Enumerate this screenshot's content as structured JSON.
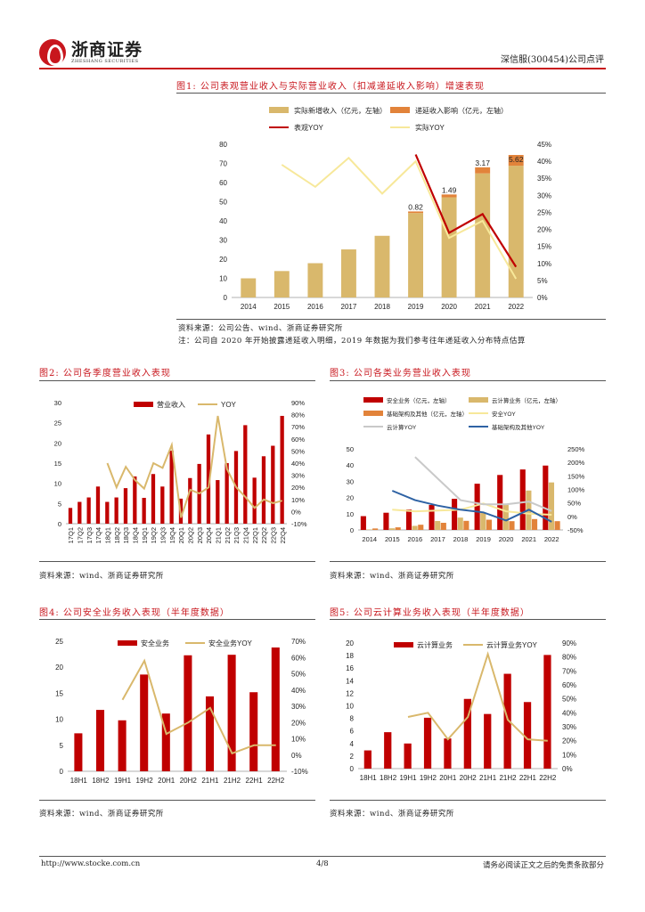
{
  "header": {
    "logo_cn": "浙商证券",
    "logo_en": "ZHESHANG SECURITIES",
    "right": "深信服(300454)公司点评"
  },
  "fig1": {
    "title": "图1:  公司表观营业收入与实际营业收入（扣减递延收入影响）增速表现",
    "source": "资料来源：公司公告、wind、浙商证券研究所",
    "note": "注：公司自 2020 年开始披露递延收入明细，2019 年数据为我们参考往年递延收入分布特点估算"
  },
  "fig2": {
    "title": "图2:  公司各季度营业收入表现",
    "source": "资料来源：wind、浙商证券研究所"
  },
  "fig3": {
    "title": "图3:  公司各类业务营业收入表现",
    "source": "资料来源：wind、浙商证券研究所"
  },
  "fig4": {
    "title": "图4:  公司安全业务收入表现（半年度数据）",
    "source": "资料来源：wind、浙商证券研究所"
  },
  "fig5": {
    "title": "图5:  公司云计算业务收入表现（半年度数据）",
    "source": "资料来源：wind、浙商证券研究所"
  },
  "footer": {
    "url": "http://www.stocke.com.cn",
    "page": "4/8",
    "disclaimer": "请务必阅读正文之后的免责条款部分"
  },
  "colors": {
    "red": "#c00000",
    "tan": "#d9b86c",
    "orange": "#e2833a",
    "yellow": "#f7e89a",
    "gray": "#c9c9c9",
    "blue": "#2e62a4",
    "brand": "#c8161d"
  },
  "chart_data": [
    {
      "id": "c1",
      "type": "bar",
      "categories": [
        "2014",
        "2015",
        "2016",
        "2017",
        "2018",
        "2019",
        "2020",
        "2021",
        "2022"
      ],
      "series": [
        {
          "name": "实际新增收入（亿元，左轴）",
          "values": [
            10,
            13.8,
            17.9,
            25.1,
            32.2,
            44.1,
            52.3,
            64.8,
            68.8
          ]
        },
        {
          "name": "递延收入影响（亿元，左轴）",
          "values": [
            0,
            0,
            0,
            0,
            0,
            0.82,
            1.49,
            3.17,
            5.62
          ]
        }
      ],
      "lines": [
        {
          "name": "表观YOY",
          "axis": "right",
          "values": [
            null,
            null,
            null,
            null,
            null,
            0.42,
            0.19,
            0.245,
            0.09
          ]
        },
        {
          "name": "实际YOY",
          "axis": "right",
          "values": [
            null,
            0.39,
            0.325,
            0.41,
            0.305,
            0.4,
            0.175,
            0.225,
            0.055
          ]
        }
      ],
      "labels": [
        "0.82",
        "1.49",
        "3.17",
        "5.62"
      ],
      "ylim": [
        0,
        80
      ],
      "yticks": [
        "0",
        "10",
        "20",
        "30",
        "40",
        "50",
        "60",
        "70",
        "80"
      ],
      "y2ticks": [
        "0%",
        "5%",
        "10%",
        "15%",
        "20%",
        "25%",
        "30%",
        "35%",
        "40%",
        "45%"
      ]
    },
    {
      "id": "c2",
      "type": "bar",
      "categories": [
        "17Q1",
        "17Q2",
        "17Q3",
        "17Q4",
        "18Q1",
        "18Q2",
        "18Q3",
        "18Q4",
        "19Q1",
        "19Q2",
        "19Q3",
        "19Q4",
        "20Q1",
        "20Q2",
        "20Q3",
        "20Q4",
        "21Q1",
        "21Q2",
        "21Q3",
        "21Q4",
        "22Q1",
        "22Q2",
        "22Q3",
        "22Q4"
      ],
      "series": [
        {
          "name": "营业收入",
          "values": [
            3.9,
            5.4,
            6.5,
            9.2,
            5.4,
            6.5,
            8.8,
            11.7,
            6.4,
            12.3,
            9.2,
            18.1,
            6.2,
            11.3,
            14.8,
            22.1,
            10.8,
            15,
            18,
            24.4,
            11.4,
            16.7,
            19.3,
            26.7
          ]
        }
      ],
      "lines": [
        {
          "name": "YOY",
          "values": [
            null,
            null,
            null,
            null,
            0.4,
            0.2,
            0.37,
            0.26,
            0.19,
            0.4,
            0.36,
            0.55,
            -0.05,
            0.18,
            0.15,
            0.2,
            0.79,
            0.35,
            0.2,
            0.12,
            0.03,
            0.1,
            0.07,
            0.09
          ]
        }
      ],
      "ylim": [
        0,
        30
      ],
      "yticks": [
        "0",
        "5",
        "10",
        "15",
        "20",
        "25",
        "30"
      ],
      "y2ticks": [
        "-10%",
        "0%",
        "10%",
        "20%",
        "30%",
        "40%",
        "50%",
        "60%",
        "70%",
        "80%",
        "90%"
      ]
    },
    {
      "id": "c3",
      "type": "bar",
      "categories": [
        "2014",
        "2015",
        "2016",
        "2017",
        "2018",
        "2019",
        "2020",
        "2021",
        "2022"
      ],
      "series": [
        {
          "name": "安全业务（亿元，左轴）",
          "values": [
            8.5,
            10.6,
            12.6,
            15.4,
            19.2,
            28.5,
            33.9,
            37.3,
            39.7
          ]
        },
        {
          "name": "云计算业务（亿元，左轴）",
          "values": [
            0.3,
            1,
            2.5,
            5.5,
            7.6,
            10.5,
            15.5,
            24.3,
            29.3
          ]
        },
        {
          "name": "基础架构及其他（亿元，左轴）",
          "values": [
            0.9,
            1.6,
            3.2,
            4.4,
            5.6,
            6.3,
            5.4,
            6.7,
            5.4
          ]
        }
      ],
      "lines": [
        {
          "name": "安全YOY",
          "values": [
            null,
            0.25,
            0.19,
            0.22,
            0.25,
            0.48,
            0.19,
            0.1,
            0.06
          ]
        },
        {
          "name": "云计算YOY",
          "values": [
            null,
            null,
            2.2,
            1.4,
            0.6,
            0.45,
            0.45,
            0.55,
            0.2
          ]
        },
        {
          "name": "基础架构及其他YOY",
          "values": [
            null,
            0.95,
            0.6,
            0.4,
            0.25,
            0.15,
            -0.15,
            0.25,
            -0.2
          ]
        }
      ],
      "ylim": [
        0,
        50
      ],
      "yticks": [
        "0",
        "10",
        "20",
        "30",
        "40",
        "50"
      ],
      "y2ticks": [
        "-50%",
        "0%",
        "50%",
        "100%",
        "150%",
        "200%",
        "250%"
      ]
    },
    {
      "id": "c4",
      "type": "bar",
      "categories": [
        "18H1",
        "18H2",
        "19H1",
        "19H2",
        "20H1",
        "20H2",
        "21H1",
        "21H2",
        "22H1",
        "22H2"
      ],
      "series": [
        {
          "name": "安全业务",
          "values": [
            7.3,
            11.8,
            9.8,
            18.6,
            11.1,
            22.3,
            14.4,
            22.4,
            15.2,
            23.8
          ]
        }
      ],
      "lines": [
        {
          "name": "安全业务YOY",
          "values": [
            null,
            null,
            0.34,
            0.58,
            0.13,
            0.2,
            0.29,
            0.01,
            0.06,
            0.06
          ]
        }
      ],
      "ylim": [
        0,
        25
      ],
      "yticks": [
        "0",
        "5",
        "10",
        "15",
        "20",
        "25"
      ],
      "y2ticks": [
        "-10%",
        "0%",
        "10%",
        "20%",
        "30%",
        "40%",
        "50%",
        "60%",
        "70%"
      ]
    },
    {
      "id": "c5",
      "type": "bar",
      "categories": [
        "18H1",
        "18H2",
        "19H1",
        "19H2",
        "20H1",
        "20H2",
        "21H1",
        "21H2",
        "22H1",
        "22H2"
      ],
      "series": [
        {
          "name": "云计算业务",
          "values": [
            2.9,
            5.8,
            4,
            8.1,
            4.8,
            11.1,
            8.7,
            15.1,
            10.6,
            18.1
          ]
        }
      ],
      "lines": [
        {
          "name": "云计算业务YOY",
          "values": [
            null,
            null,
            0.37,
            0.4,
            0.21,
            0.37,
            0.82,
            0.35,
            0.21,
            0.2
          ]
        }
      ],
      "ylim": [
        0,
        20
      ],
      "yticks": [
        "0",
        "2",
        "4",
        "6",
        "8",
        "10",
        "12",
        "14",
        "16",
        "18",
        "20"
      ],
      "y2ticks": [
        "0%",
        "10%",
        "20%",
        "30%",
        "40%",
        "50%",
        "60%",
        "70%",
        "80%",
        "90%"
      ]
    }
  ]
}
